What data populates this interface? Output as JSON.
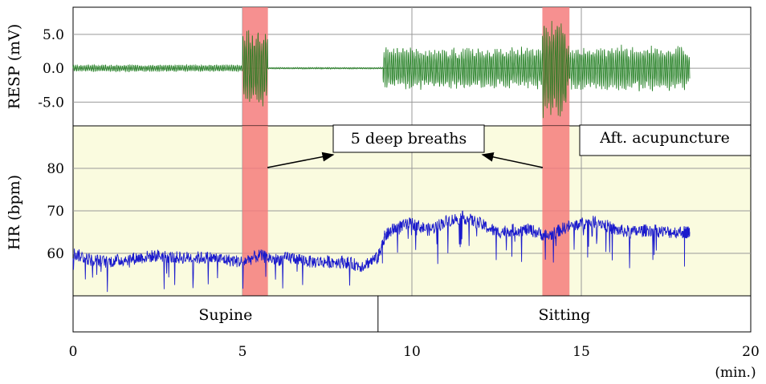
{
  "chart_data": [
    {
      "type": "line",
      "ylabel": "RESP (mV)",
      "ytick_labels": [
        "5.0",
        "0.0",
        "-5.0"
      ],
      "ytick_values": [
        5.0,
        0.0,
        -5.0
      ],
      "ylim": [
        -8.5,
        9.0
      ],
      "xlim": [
        0,
        20
      ],
      "grid": true,
      "series": [
        {
          "color": "#1a7a1a",
          "segments": [
            {
              "x_start": 0.0,
              "x_end": 5.0,
              "amplitude": 0.5
            },
            {
              "x_start": 5.0,
              "x_end": 5.75,
              "amplitude": 5.5
            },
            {
              "x_start": 5.75,
              "x_end": 9.15,
              "amplitude": 0.12
            },
            {
              "x_start": 9.15,
              "x_end": 13.85,
              "amplitude": 3.0
            },
            {
              "x_start": 13.85,
              "x_end": 14.55,
              "amplitude": 7.0
            },
            {
              "x_start": 14.55,
              "x_end": 18.2,
              "amplitude": 3.2
            }
          ]
        }
      ]
    },
    {
      "type": "line",
      "ylabel": "HR (bpm)",
      "ytick_labels": [
        "80",
        "70",
        "60"
      ],
      "ytick_values": [
        80,
        70,
        60
      ],
      "ylim": [
        50,
        90
      ],
      "xlim": [
        0,
        20
      ],
      "grid": true,
      "series": [
        {
          "color": "#1a1acc",
          "points": [
            [
              0.0,
              60.0
            ],
            [
              0.5,
              58.5
            ],
            [
              1.0,
              58.0
            ],
            [
              1.5,
              58.5
            ],
            [
              2.0,
              59.0
            ],
            [
              2.5,
              59.5
            ],
            [
              3.0,
              59.0
            ],
            [
              3.5,
              59.0
            ],
            [
              4.0,
              59.0
            ],
            [
              4.5,
              58.5
            ],
            [
              5.0,
              58.0
            ],
            [
              5.5,
              59.5
            ],
            [
              6.0,
              58.5
            ],
            [
              6.5,
              59.0
            ],
            [
              7.0,
              58.0
            ],
            [
              7.5,
              58.0
            ],
            [
              8.0,
              58.0
            ],
            [
              8.5,
              57.0
            ],
            [
              9.0,
              59.0
            ],
            [
              9.2,
              64.0
            ],
            [
              9.5,
              66.0
            ],
            [
              10.0,
              67.0
            ],
            [
              10.5,
              65.5
            ],
            [
              11.0,
              67.5
            ],
            [
              11.5,
              68.5
            ],
            [
              12.0,
              67.0
            ],
            [
              12.5,
              65.0
            ],
            [
              13.0,
              65.5
            ],
            [
              13.5,
              65.5
            ],
            [
              14.0,
              64.0
            ],
            [
              14.5,
              66.0
            ],
            [
              15.0,
              67.0
            ],
            [
              15.5,
              67.5
            ],
            [
              16.0,
              65.5
            ],
            [
              16.5,
              65.0
            ],
            [
              17.0,
              65.5
            ],
            [
              17.5,
              65.0
            ],
            [
              18.0,
              65.0
            ],
            [
              18.2,
              65.0
            ]
          ]
        }
      ]
    }
  ],
  "x_axis": {
    "tick_labels": [
      "0",
      "5",
      "10",
      "15",
      "20"
    ],
    "tick_values": [
      0,
      5,
      10,
      15,
      20
    ],
    "unit": "(min.)"
  },
  "highlights": [
    {
      "x_start": 5.0,
      "x_end": 5.75,
      "color": "#f47c7c"
    },
    {
      "x_start": 13.85,
      "x_end": 14.65,
      "color": "#f47c7c"
    }
  ],
  "annotations": {
    "deep_breaths": "5 deep breaths",
    "after_acupuncture": "Aft. acupuncture"
  },
  "posture": {
    "supine": "Supine",
    "sitting": "Sitting",
    "divider_x": 9.0
  },
  "colors": {
    "hr_panel_bg": "#fafbdf",
    "grid": "#999999",
    "resp": "#1a7a1a",
    "hr": "#1a1acc",
    "highlight": "#f47c7c"
  }
}
